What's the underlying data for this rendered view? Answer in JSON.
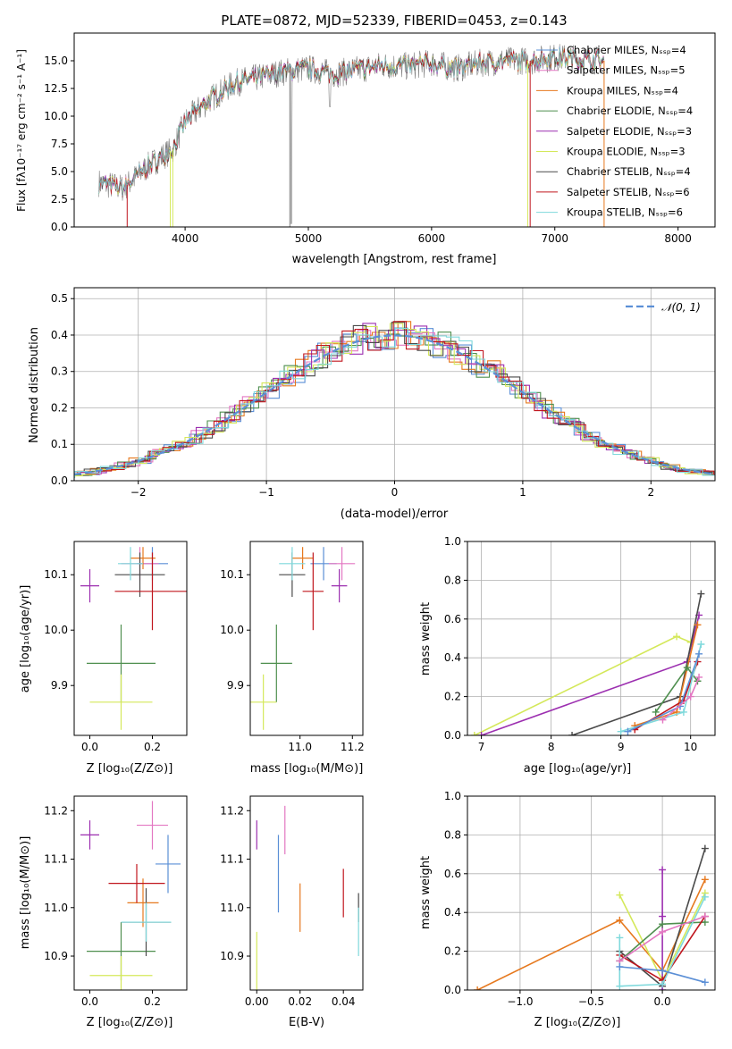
{
  "colors": {
    "chabrier_miles": "#5b8fd6",
    "salpeter_miles": "#e377c2",
    "kroupa_miles": "#e6791f",
    "chabrier_elodie": "#4f8f4f",
    "salpeter_elodie": "#9c2fb0",
    "kroupa_elodie": "#d4e85a",
    "chabrier_stelib": "#4a4a4a",
    "salpeter_stelib": "#c0161e",
    "kroupa_stelib": "#7fd9dc",
    "data_gray": "#808080",
    "normal_line": "#5b8fd6"
  },
  "chart_data": [
    {
      "type": "line",
      "title": "PLATE=0872, MJD=52339, FIBERID=0453, z=0.143",
      "xlabel": "wavelength [Angstrom, rest frame]",
      "ylabel": "Flux [fλ10⁻¹⁷ erg cm⁻² s⁻¹ A⁻¹]",
      "xlim": [
        3100,
        8300
      ],
      "ylim": [
        0,
        17.5
      ],
      "xticks": [
        "4000",
        "5000",
        "6000",
        "7000",
        "8000"
      ],
      "yticks": [
        "0.0",
        "2.5",
        "5.0",
        "7.5",
        "10.0",
        "12.5",
        "15.0"
      ],
      "legend": "top-right",
      "series": [
        {
          "name": "Chabrier MILES, Nₛₛₚ=4",
          "key": "chabrier_miles"
        },
        {
          "name": "Salpeter MILES, Nₛₛₚ=5",
          "key": "salpeter_miles"
        },
        {
          "name": "Kroupa MILES, Nₛₛₚ=4",
          "key": "kroupa_miles"
        },
        {
          "name": "Chabrier ELODIE, Nₛₛₚ=4",
          "key": "chabrier_elodie"
        },
        {
          "name": "Salpeter ELODIE, Nₛₛₚ=3",
          "key": "salpeter_elodie"
        },
        {
          "name": "Kroupa ELODIE, Nₛₛₚ=3",
          "key": "kroupa_elodie"
        },
        {
          "name": "Chabrier STELIB, Nₛₛₚ=4",
          "key": "chabrier_stelib"
        },
        {
          "name": "Salpeter STELIB, Nₛₛₚ=6",
          "key": "salpeter_stelib"
        },
        {
          "name": "Kroupa STELIB, Nₛₛₚ=6",
          "key": "kroupa_stelib"
        }
      ],
      "spectrum_anchor": {
        "x": [
          3300,
          3500,
          3700,
          3900,
          4000,
          4200,
          4400,
          4600,
          4800,
          5000,
          5200,
          5400,
          5600,
          5800,
          6000,
          6200,
          6400,
          6600,
          6800,
          7000,
          7200,
          7400
        ],
        "y": [
          4.0,
          3.5,
          5.5,
          7.0,
          9.5,
          11.5,
          13.0,
          13.5,
          14.0,
          14.3,
          13.8,
          14.2,
          14.6,
          14.5,
          14.8,
          14.3,
          14.8,
          15.0,
          15.0,
          15.3,
          15.2,
          15.0
        ]
      }
    },
    {
      "type": "bar",
      "xlabel": "(data-model)/error",
      "ylabel": "Normed distribution",
      "xlim": [
        -2.5,
        2.5
      ],
      "ylim": [
        0,
        0.53
      ],
      "xticks": [
        "−2",
        "−1",
        "0",
        "1",
        "2"
      ],
      "yticks": [
        "0.0",
        "0.1",
        "0.2",
        "0.3",
        "0.4",
        "0.5"
      ],
      "legend": "top-right",
      "normal_label": "𝒩(0, 1)",
      "bin_width": 0.1,
      "grid": true
    },
    {
      "type": "scatter",
      "xlabel": "Z [log₁₀(Z/Z⊙)]",
      "ylabel": "age  [log₁₀(age/yr)]",
      "xlim": [
        -0.05,
        0.31
      ],
      "ylim": [
        9.81,
        10.16
      ],
      "xticks": [
        "0.0",
        "0.2"
      ],
      "yticks": [
        "9.9",
        "10.0",
        "10.1"
      ],
      "points": [
        {
          "key": "chabrier_miles",
          "x": 0.2,
          "y": 10.12,
          "xerr": 0.05,
          "yerr": 0.03
        },
        {
          "key": "salpeter_miles",
          "x": 0.16,
          "y": 10.12,
          "xerr": 0.06,
          "yerr": 0.03
        },
        {
          "key": "kroupa_miles",
          "x": 0.17,
          "y": 10.13,
          "xerr": 0.04,
          "yerr": 0.02
        },
        {
          "key": "chabrier_elodie",
          "x": 0.1,
          "y": 9.94,
          "xerr": 0.11,
          "yerr": 0.07
        },
        {
          "key": "salpeter_elodie",
          "x": 0.0,
          "y": 10.08,
          "xerr": 0.03,
          "yerr": 0.03
        },
        {
          "key": "kroupa_elodie",
          "x": 0.1,
          "y": 9.87,
          "xerr": 0.1,
          "yerr": 0.05
        },
        {
          "key": "chabrier_stelib",
          "x": 0.16,
          "y": 10.1,
          "xerr": 0.08,
          "yerr": 0.04
        },
        {
          "key": "salpeter_stelib",
          "x": 0.2,
          "y": 10.07,
          "xerr": 0.12,
          "yerr": 0.07
        },
        {
          "key": "kroupa_stelib",
          "x": 0.13,
          "y": 10.12,
          "xerr": 0.04,
          "yerr": 0.03
        }
      ]
    },
    {
      "type": "scatter",
      "xlabel": "mass [log₁₀(M/M⊙)]",
      "ylabel": "",
      "xlim": [
        10.81,
        11.24
      ],
      "ylim": [
        9.81,
        10.16
      ],
      "xticks": [
        "11.0",
        "11.2"
      ],
      "yticks": [
        "9.9",
        "10.0",
        "10.1"
      ],
      "points": [
        {
          "key": "chabrier_miles",
          "x": 11.09,
          "y": 10.12,
          "xerr": 0.05,
          "yerr": 0.03
        },
        {
          "key": "salpeter_miles",
          "x": 11.16,
          "y": 10.12,
          "xerr": 0.05,
          "yerr": 0.03
        },
        {
          "key": "kroupa_miles",
          "x": 11.01,
          "y": 10.13,
          "xerr": 0.04,
          "yerr": 0.02
        },
        {
          "key": "chabrier_elodie",
          "x": 10.91,
          "y": 9.94,
          "xerr": 0.06,
          "yerr": 0.07
        },
        {
          "key": "salpeter_elodie",
          "x": 11.15,
          "y": 10.08,
          "xerr": 0.03,
          "yerr": 0.03
        },
        {
          "key": "kroupa_elodie",
          "x": 10.86,
          "y": 9.87,
          "xerr": 0.05,
          "yerr": 0.05
        },
        {
          "key": "chabrier_stelib",
          "x": 10.97,
          "y": 10.1,
          "xerr": 0.05,
          "yerr": 0.04
        },
        {
          "key": "salpeter_stelib",
          "x": 11.05,
          "y": 10.07,
          "xerr": 0.04,
          "yerr": 0.07
        },
        {
          "key": "kroupa_stelib",
          "x": 10.97,
          "y": 10.12,
          "xerr": 0.05,
          "yerr": 0.03
        }
      ]
    },
    {
      "type": "line",
      "xlabel": "age  [log₁₀(age/yr)]",
      "ylabel": "mass weight",
      "xlim": [
        6.8,
        10.35
      ],
      "ylim": [
        0,
        1
      ],
      "xticks": [
        "7",
        "8",
        "9",
        "10"
      ],
      "yticks": [
        "0.0",
        "0.2",
        "0.4",
        "0.6",
        "0.8",
        "1.0"
      ],
      "grid": true,
      "series": [
        {
          "key": "kroupa_elodie",
          "x": [
            6.9,
            9.8,
            10.0
          ],
          "y": [
            0.0,
            0.51,
            0.48
          ]
        },
        {
          "key": "salpeter_elodie",
          "x": [
            7.0,
            9.95,
            10.12
          ],
          "y": [
            0.0,
            0.38,
            0.62
          ]
        },
        {
          "key": "chabrier_stelib",
          "x": [
            8.3,
            9.85,
            10.15
          ],
          "y": [
            0.0,
            0.2,
            0.73
          ]
        },
        {
          "key": "kroupa_miles",
          "x": [
            9.2,
            9.8,
            10.1
          ],
          "y": [
            0.05,
            0.12,
            0.57
          ]
        },
        {
          "key": "salpeter_stelib",
          "x": [
            9.2,
            9.9,
            10.1
          ],
          "y": [
            0.03,
            0.18,
            0.38
          ]
        },
        {
          "key": "chabrier_elodie",
          "x": [
            9.5,
            9.95,
            10.1
          ],
          "y": [
            0.12,
            0.35,
            0.28
          ]
        },
        {
          "key": "kroupa_stelib",
          "x": [
            9.0,
            9.9,
            10.15
          ],
          "y": [
            0.02,
            0.12,
            0.47
          ]
        },
        {
          "key": "chabrier_miles",
          "x": [
            9.1,
            9.85,
            10.12
          ],
          "y": [
            0.02,
            0.15,
            0.42
          ]
        },
        {
          "key": "salpeter_miles",
          "x": [
            9.6,
            10.0,
            10.12
          ],
          "y": [
            0.08,
            0.2,
            0.3
          ]
        }
      ]
    },
    {
      "type": "scatter",
      "xlabel": "Z [log₁₀(Z/Z⊙)]",
      "ylabel": "mass [log₁₀(M/M⊙)]",
      "xlim": [
        -0.05,
        0.31
      ],
      "ylim": [
        10.83,
        11.23
      ],
      "xticks": [
        "0.0",
        "0.2"
      ],
      "yticks": [
        "10.9",
        "11.0",
        "11.1",
        "11.2"
      ],
      "points": [
        {
          "key": "chabrier_miles",
          "x": 0.25,
          "y": 11.09,
          "xerr": 0.04,
          "yerr": 0.06
        },
        {
          "key": "salpeter_miles",
          "x": 0.2,
          "y": 11.17,
          "xerr": 0.05,
          "yerr": 0.05
        },
        {
          "key": "kroupa_miles",
          "x": 0.17,
          "y": 11.01,
          "xerr": 0.05,
          "yerr": 0.05
        },
        {
          "key": "chabrier_elodie",
          "x": 0.1,
          "y": 10.91,
          "xerr": 0.11,
          "yerr": 0.06
        },
        {
          "key": "salpeter_elodie",
          "x": 0.0,
          "y": 11.15,
          "xerr": 0.03,
          "yerr": 0.03
        },
        {
          "key": "kroupa_elodie",
          "x": 0.1,
          "y": 10.86,
          "xerr": 0.1,
          "yerr": 0.04
        },
        {
          "key": "chabrier_stelib",
          "x": 0.18,
          "y": 10.97,
          "xerr": 0.08,
          "yerr": 0.07
        },
        {
          "key": "salpeter_stelib",
          "x": 0.15,
          "y": 11.05,
          "xerr": 0.09,
          "yerr": 0.04
        },
        {
          "key": "kroupa_stelib",
          "x": 0.18,
          "y": 10.97,
          "xerr": 0.08,
          "yerr": 0.04
        }
      ]
    },
    {
      "type": "scatter",
      "xlabel": "E(B-V)",
      "ylabel": "",
      "xlim": [
        -0.003,
        0.049
      ],
      "ylim": [
        10.83,
        11.23
      ],
      "xticks": [
        "0.00",
        "0.02",
        "0.04"
      ],
      "yticks": [
        "10.9",
        "11.0",
        "11.1",
        "11.2"
      ],
      "points": [
        {
          "key": "salpeter_elodie",
          "x": 0.0,
          "y": 11.15,
          "yerr": 0.03
        },
        {
          "key": "kroupa_elodie",
          "x": 0.0,
          "y": 10.89,
          "yerr": 0.06
        },
        {
          "key": "chabrier_miles",
          "x": 0.01,
          "y": 11.07,
          "yerr": 0.08
        },
        {
          "key": "salpeter_miles",
          "x": 0.013,
          "y": 11.16,
          "yerr": 0.05
        },
        {
          "key": "kroupa_miles",
          "x": 0.02,
          "y": 11.0,
          "yerr": 0.05
        },
        {
          "key": "salpeter_stelib",
          "x": 0.04,
          "y": 11.03,
          "yerr": 0.05
        },
        {
          "key": "chabrier_stelib",
          "x": 0.047,
          "y": 11.0,
          "yerr": 0.03
        },
        {
          "key": "kroupa_stelib",
          "x": 0.047,
          "y": 10.95,
          "yerr": 0.05
        }
      ]
    },
    {
      "type": "line",
      "xlabel": "Z [log₁₀(Z/Z⊙)]",
      "ylabel": "mass weight",
      "xlim": [
        -1.37,
        0.37
      ],
      "ylim": [
        0,
        1
      ],
      "xticks": [
        "−1.0",
        "−0.5",
        "0.0"
      ],
      "yticks": [
        "0.0",
        "0.2",
        "0.4",
        "0.6",
        "0.8",
        "1.0"
      ],
      "grid": true,
      "series": [
        {
          "key": "kroupa_miles",
          "x": [
            -1.3,
            -0.3,
            0.0,
            0.3
          ],
          "y": [
            0.0,
            0.36,
            0.1,
            0.57
          ]
        },
        {
          "key": "chabrier_stelib",
          "x": [
            -0.3,
            0.0,
            0.3
          ],
          "y": [
            0.2,
            0.02,
            0.73
          ]
        },
        {
          "key": "kroupa_elodie",
          "x": [
            -0.3,
            0.0,
            0.3
          ],
          "y": [
            0.49,
            0.05,
            0.5
          ]
        },
        {
          "key": "salpeter_elodie",
          "x": [
            0.0,
            0.0,
            0.0
          ],
          "y": [
            0.0,
            0.38,
            0.62
          ]
        },
        {
          "key": "chabrier_elodie",
          "x": [
            -0.3,
            0.0,
            0.3
          ],
          "y": [
            0.15,
            0.34,
            0.35
          ]
        },
        {
          "key": "salpeter_stelib",
          "x": [
            -0.3,
            0.0,
            0.3
          ],
          "y": [
            0.18,
            0.05,
            0.38
          ]
        },
        {
          "key": "kroupa_stelib",
          "x": [
            -0.3,
            -0.3,
            0.0,
            0.3
          ],
          "y": [
            0.27,
            0.02,
            0.03,
            0.48
          ]
        },
        {
          "key": "salpeter_miles",
          "x": [
            -0.3,
            0.0,
            0.3
          ],
          "y": [
            0.15,
            0.3,
            0.38
          ]
        },
        {
          "key": "chabrier_miles",
          "x": [
            -0.3,
            0.0,
            0.3
          ],
          "y": [
            0.12,
            0.1,
            0.04
          ]
        }
      ]
    }
  ]
}
